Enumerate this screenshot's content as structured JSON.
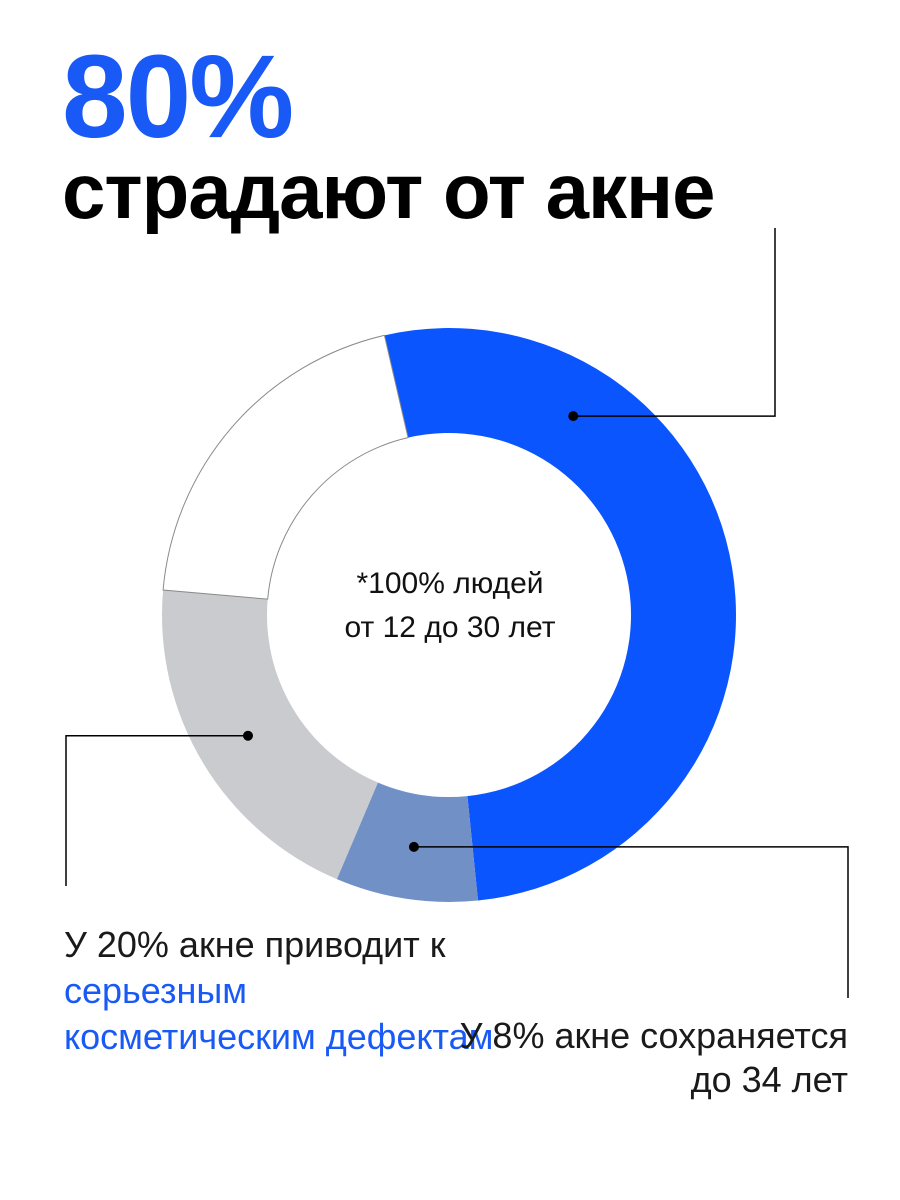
{
  "colors": {
    "accent": "#1959f5",
    "blue_slice": "#0b55ff",
    "mid_slice": "#7191c6",
    "gray_slice": "#cacbce",
    "white_slice": "#ffffff",
    "text": "#000000"
  },
  "headline": {
    "percent": "80%",
    "text": "страдают от акне"
  },
  "center": {
    "line1": "*100% людей",
    "line2": "от 12 до 30 лет"
  },
  "notes": {
    "left": {
      "prefix": "У 20% акне приводит к",
      "highlight": "серьезным косметическим дефектам"
    },
    "right": {
      "text": "У 8% акне сохраняется до 34 лет"
    }
  },
  "chart_data": {
    "type": "pie",
    "variant": "donut",
    "total_label": "*100% людей от 12 до 30 лет",
    "slices": [
      {
        "label": "страдают от акне",
        "value": 52,
        "color": "#0b55ff"
      },
      {
        "label": "У 8% акне сохраняется до 34 лет",
        "value": 8,
        "color": "#7191c6"
      },
      {
        "label": "У 20% акне приводит к серьезным косметическим дефектам",
        "value": 20,
        "color": "#cacbce"
      },
      {
        "label": "",
        "value": 20,
        "color": "#ffffff"
      }
    ],
    "legend": "none"
  }
}
